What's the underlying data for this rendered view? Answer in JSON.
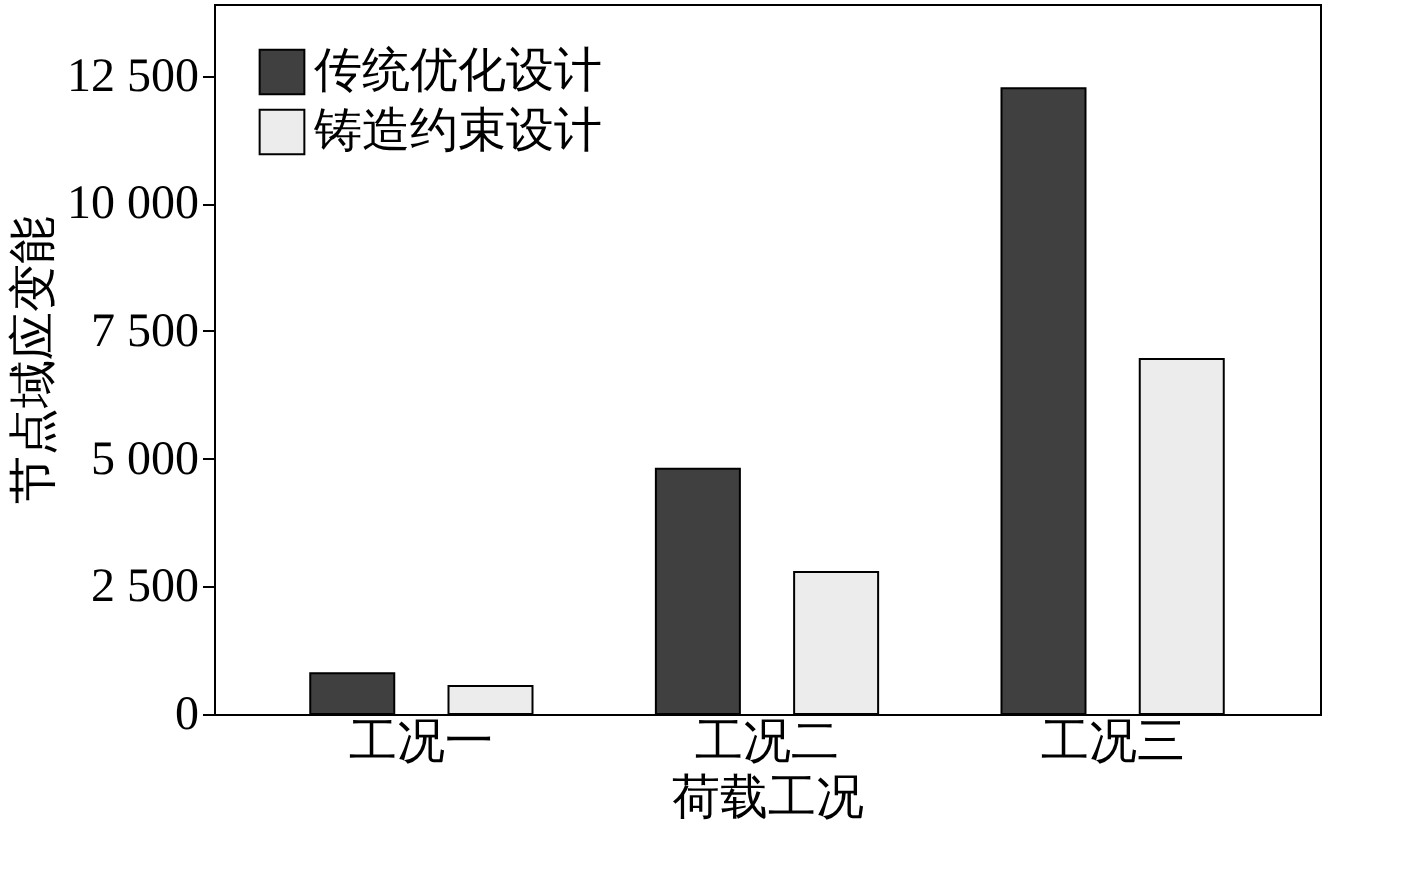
{
  "chart_data": {
    "type": "bar",
    "xlabel": "荷载工况",
    "ylabel": "节点域应变能",
    "categories": [
      "工况一",
      "工况二",
      "工况三"
    ],
    "series": [
      {
        "name": "传统优化设计",
        "color": "#404040",
        "values": [
          800,
          4800,
          12250
        ]
      },
      {
        "name": "铸造约束设计",
        "color": "#ececec",
        "values": [
          550,
          2780,
          6950
        ]
      }
    ],
    "ylim": [
      0,
      13900
    ],
    "yticks": [
      0,
      {
        "value": 2500,
        "label": "2 500"
      },
      {
        "value": 5000,
        "label": "5 000"
      },
      {
        "value": 7500,
        "label": "7 500"
      },
      {
        "value": 10000,
        "label": "10 000"
      },
      {
        "value": 12500,
        "label": "12 500"
      }
    ],
    "legend": "top left",
    "grid": false
  }
}
